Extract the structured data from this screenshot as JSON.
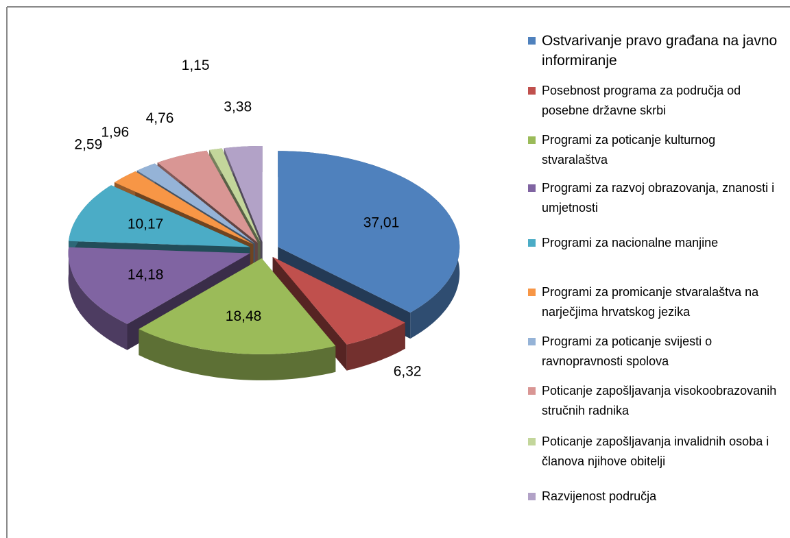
{
  "chart_data": {
    "type": "pie3d",
    "categories": [
      "Ostvarivanje pravo građana na javno informiranje",
      "Posebnost programa za područja od posebne državne skrbi",
      "Programi za poticanje kulturnog stvaralaštva",
      "Programi za razvoj obrazovanja, znanosti i umjetnosti",
      "Programi za nacionalne manjine",
      "Programi za promicanje stvaralaštva na narječjima hrvatskog jezika",
      "Programi za poticanje svijesti o ravnopravnosti spolova",
      "Poticanje zapošljavanja visokoobrazovanih stručnih radnika",
      "Poticanje zapošljavanja invalidnih osoba i članova njihove obitelji",
      "Razvijenost područja"
    ],
    "values": [
      37.01,
      6.32,
      18.48,
      14.18,
      10.17,
      2.59,
      1.96,
      4.76,
      1.15,
      3.38
    ],
    "value_labels": [
      "37,01",
      "6,32",
      "18,48",
      "14,18",
      "10,17",
      "2,59",
      "1,96",
      "4,76",
      "1,15",
      "3,38"
    ],
    "colors": [
      "#4f81bd",
      "#c0504d",
      "#9bbb59",
      "#8064a2",
      "#4bacc6",
      "#f79646",
      "#95b3d7",
      "#d99694",
      "#c3d69b",
      "#b2a2c7"
    ],
    "legend": "right"
  }
}
